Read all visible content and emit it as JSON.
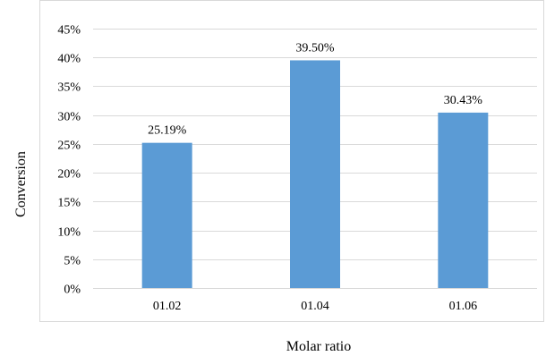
{
  "chart_data": {
    "type": "bar",
    "title": "",
    "xlabel": "Molar ratio",
    "ylabel": "Conversion",
    "categories": [
      "01.02",
      "01.04",
      "01.06"
    ],
    "values": [
      25.19,
      39.5,
      30.43
    ],
    "data_labels": [
      "25.19%",
      "39.50%",
      "30.43%"
    ],
    "y_ticks": [
      "0%",
      "5%",
      "10%",
      "15%",
      "20%",
      "25%",
      "30%",
      "35%",
      "40%",
      "45%"
    ],
    "ylim": [
      0,
      45
    ],
    "y_unit": "%",
    "grid": true,
    "legend": "none",
    "colors": {
      "bar": "#5B9BD5",
      "gridline": "#D9D9D9",
      "frame": "#D9D9D9",
      "text": "#000000"
    }
  }
}
